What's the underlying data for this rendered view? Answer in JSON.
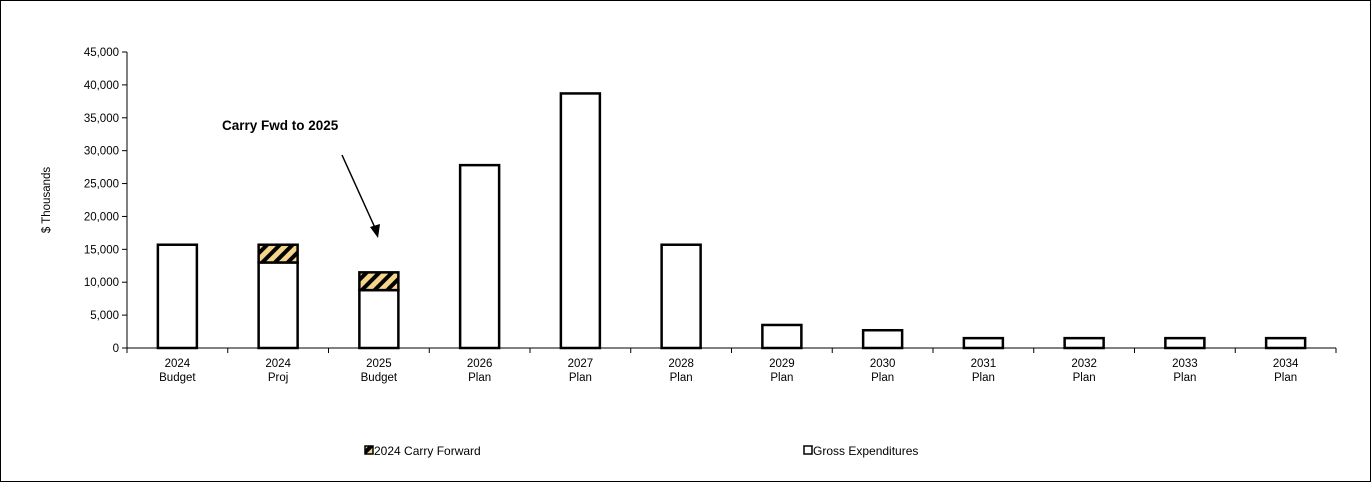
{
  "chart_data": {
    "type": "bar",
    "stacked": true,
    "ylabel": "$ Thousands",
    "ylim": [
      0,
      45000
    ],
    "yticks": [
      "0",
      "5,000",
      "10,000",
      "15,000",
      "20,000",
      "25,000",
      "30,000",
      "35,000",
      "40,000",
      "45,000"
    ],
    "categories": [
      [
        "2024",
        "Budget"
      ],
      [
        "2024",
        "Proj"
      ],
      [
        "2025",
        "Budget"
      ],
      [
        "2026",
        "Plan"
      ],
      [
        "2027",
        "Plan"
      ],
      [
        "2028",
        "Plan"
      ],
      [
        "2029",
        "Plan"
      ],
      [
        "2030",
        "Plan"
      ],
      [
        "2031",
        "Plan"
      ],
      [
        "2032",
        "Plan"
      ],
      [
        "2033",
        "Plan"
      ],
      [
        "2034",
        "Plan"
      ]
    ],
    "series": [
      {
        "name": "Gross Expenditures",
        "values": [
          15700,
          13000,
          8800,
          27800,
          38700,
          15700,
          3500,
          2700,
          1500,
          1500,
          1500,
          1500
        ]
      },
      {
        "name": "2024 Carry Forward",
        "values": [
          0,
          2700,
          2700,
          0,
          0,
          0,
          0,
          0,
          0,
          0,
          0,
          0
        ]
      }
    ],
    "annotation": "Carry Fwd to 2025",
    "legend_position": "bottom",
    "colors": {
      "gross": "#ffffff",
      "carry_fill": "#f5d58a",
      "carry_hatch": "#000000",
      "outline": "#000000"
    }
  }
}
